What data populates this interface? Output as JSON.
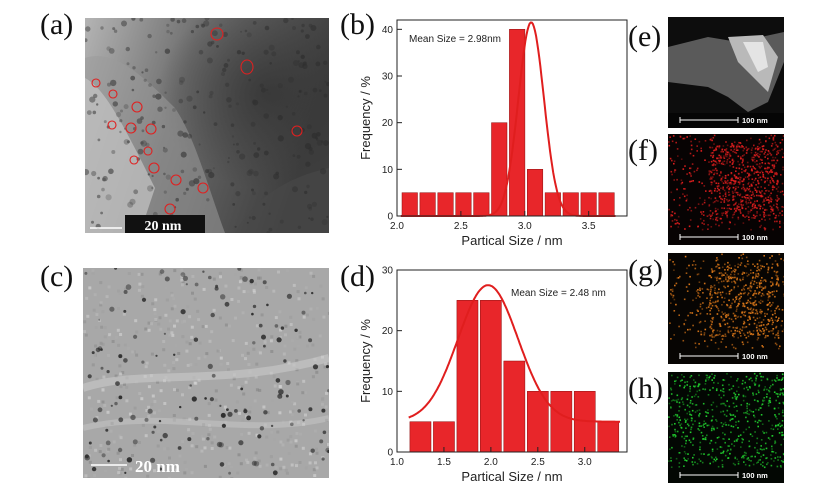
{
  "panels": {
    "a": {
      "letter": "(a)",
      "scale_label": "20 nm"
    },
    "b": {
      "letter": "(b)"
    },
    "c": {
      "letter": "(c)",
      "scale_label": "20 nm"
    },
    "d": {
      "letter": "(d)"
    },
    "e": {
      "letter": "(e)",
      "scale_label": "100 nm",
      "color": "#c8c8c8"
    },
    "f": {
      "letter": "(f)",
      "scale_label": "100 nm",
      "color": "#e01e1e"
    },
    "g": {
      "letter": "(g)",
      "scale_label": "100 nm",
      "color": "#e07a1a"
    },
    "h": {
      "letter": "(h)",
      "scale_label": "100 nm",
      "color": "#22d430"
    }
  },
  "chart_data": [
    {
      "type": "bar",
      "panel": "b",
      "annotation": "Mean Size = 2.98nm",
      "xlabel": "Partical Size / nm",
      "ylabel": "Frequency / %",
      "xlim": [
        2.0,
        3.8
      ],
      "ylim": [
        0,
        42
      ],
      "xticks": [
        2.0,
        2.5,
        3.0,
        3.5
      ],
      "xtick_labels": [
        "2.0",
        "2.5",
        "3.0",
        "3.5"
      ],
      "yticks": [
        0,
        10,
        20,
        30,
        40
      ],
      "ytick_labels": [
        "0",
        "10",
        "20",
        "30",
        "40"
      ],
      "bin_width": 0.14,
      "x": [
        2.1,
        2.24,
        2.38,
        2.52,
        2.66,
        2.8,
        2.94,
        3.08,
        3.22,
        3.36,
        3.5,
        3.64
      ],
      "values": [
        5,
        5,
        5,
        5,
        5,
        20,
        40,
        10,
        5,
        5,
        5,
        5
      ],
      "bar_color": "#e8262a",
      "fit": {
        "type": "gaussian",
        "center": 3.05,
        "amplitude": 41.5,
        "sigma": 0.1,
        "baseline": 0
      }
    },
    {
      "type": "bar",
      "panel": "d",
      "annotation": "Mean Size = 2.48 nm",
      "xlabel": "Partical Size / nm",
      "ylabel": "Frequency / %",
      "xlim": [
        1.0,
        3.45
      ],
      "ylim": [
        0,
        30
      ],
      "xticks": [
        1.0,
        1.5,
        2.0,
        2.5,
        3.0
      ],
      "xtick_labels": [
        "1.0",
        "1.5",
        "2.0",
        "2.5",
        "3.0"
      ],
      "yticks": [
        0,
        10,
        20,
        30
      ],
      "ytick_labels": [
        "0",
        "10",
        "20",
        "30"
      ],
      "bin_width": 0.25,
      "x": [
        1.25,
        1.5,
        1.75,
        2.0,
        2.25,
        2.5,
        2.75,
        3.0,
        3.25
      ],
      "values": [
        5,
        5,
        25,
        25,
        15,
        10,
        10,
        10,
        5
      ],
      "bar_color": "#e8262a",
      "fit": {
        "type": "gaussian",
        "center": 1.97,
        "amplitude": 22.5,
        "sigma": 0.32,
        "baseline": 5
      }
    }
  ]
}
